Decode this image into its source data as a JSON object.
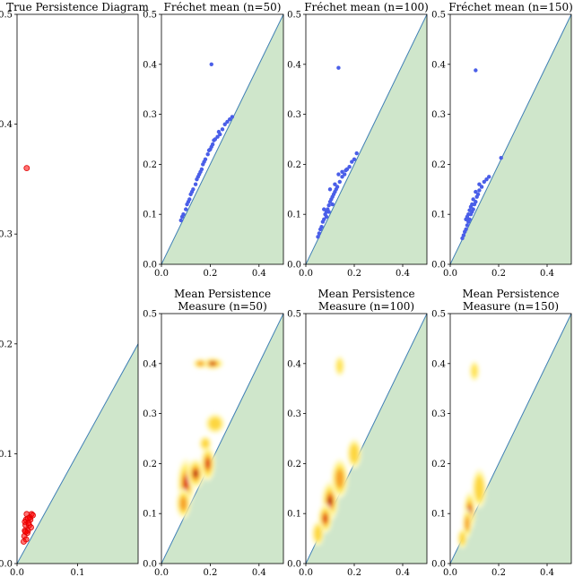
{
  "chart_data": [
    {
      "id": "true",
      "type": "scatter",
      "title": [
        "True Persistence Diagram"
      ],
      "xlim": [
        0,
        0.2
      ],
      "ylim": [
        0,
        0.5
      ],
      "xticks": [
        0.0,
        0.1
      ],
      "yticks": [
        0.0,
        0.1,
        0.2,
        0.3,
        0.4,
        0.5
      ],
      "point_color": "#ff0000",
      "points": [
        [
          0.016,
          0.36
        ],
        [
          0.012,
          0.025
        ],
        [
          0.013,
          0.03
        ],
        [
          0.014,
          0.035
        ],
        [
          0.015,
          0.04
        ],
        [
          0.016,
          0.045
        ],
        [
          0.018,
          0.03
        ],
        [
          0.02,
          0.035
        ],
        [
          0.022,
          0.04
        ],
        [
          0.024,
          0.045
        ],
        [
          0.013,
          0.038
        ],
        [
          0.017,
          0.028
        ],
        [
          0.021,
          0.042
        ],
        [
          0.015,
          0.022
        ],
        [
          0.019,
          0.037
        ],
        [
          0.023,
          0.033
        ],
        [
          0.026,
          0.044
        ],
        [
          0.011,
          0.02
        ],
        [
          0.014,
          0.029
        ],
        [
          0.018,
          0.041
        ]
      ]
    },
    {
      "id": "frechet50",
      "type": "scatter",
      "title": [
        "Fréchet mean (n=50)"
      ],
      "xlim": [
        0,
        0.5
      ],
      "ylim": [
        0,
        0.5
      ],
      "xticks": [
        0.0,
        0.2,
        0.4
      ],
      "yticks": [
        0.0,
        0.1,
        0.2,
        0.3,
        0.4,
        0.5
      ],
      "point_color": "#4a5ee8",
      "points": [
        [
          0.205,
          0.4
        ],
        [
          0.08,
          0.088
        ],
        [
          0.085,
          0.095
        ],
        [
          0.09,
          0.1
        ],
        [
          0.1,
          0.11
        ],
        [
          0.105,
          0.12
        ],
        [
          0.11,
          0.125
        ],
        [
          0.115,
          0.13
        ],
        [
          0.12,
          0.14
        ],
        [
          0.13,
          0.15
        ],
        [
          0.14,
          0.16
        ],
        [
          0.145,
          0.17
        ],
        [
          0.15,
          0.175
        ],
        [
          0.16,
          0.185
        ],
        [
          0.165,
          0.19
        ],
        [
          0.17,
          0.2
        ],
        [
          0.18,
          0.21
        ],
        [
          0.19,
          0.22
        ],
        [
          0.2,
          0.23
        ],
        [
          0.205,
          0.235
        ],
        [
          0.21,
          0.24
        ],
        [
          0.22,
          0.25
        ],
        [
          0.23,
          0.255
        ],
        [
          0.24,
          0.26
        ],
        [
          0.25,
          0.27
        ],
        [
          0.26,
          0.28
        ],
        [
          0.27,
          0.285
        ],
        [
          0.28,
          0.29
        ],
        [
          0.29,
          0.295
        ],
        [
          0.125,
          0.145
        ],
        [
          0.155,
          0.18
        ],
        [
          0.175,
          0.205
        ],
        [
          0.195,
          0.228
        ],
        [
          0.215,
          0.248
        ],
        [
          0.235,
          0.265
        ]
      ]
    },
    {
      "id": "frechet100",
      "type": "scatter",
      "title": [
        "Fréchet mean (n=100)"
      ],
      "xlim": [
        0,
        0.5
      ],
      "ylim": [
        0,
        0.5
      ],
      "xticks": [
        0.0,
        0.2,
        0.4
      ],
      "yticks": [
        0.0,
        0.1,
        0.2,
        0.3,
        0.4,
        0.5
      ],
      "point_color": "#4a5ee8",
      "points": [
        [
          0.135,
          0.393
        ],
        [
          0.05,
          0.055
        ],
        [
          0.055,
          0.062
        ],
        [
          0.06,
          0.07
        ],
        [
          0.065,
          0.075
        ],
        [
          0.07,
          0.085
        ],
        [
          0.075,
          0.09
        ],
        [
          0.08,
          0.1
        ],
        [
          0.085,
          0.105
        ],
        [
          0.09,
          0.11
        ],
        [
          0.095,
          0.118
        ],
        [
          0.1,
          0.125
        ],
        [
          0.105,
          0.13
        ],
        [
          0.11,
          0.135
        ],
        [
          0.115,
          0.14
        ],
        [
          0.12,
          0.145
        ],
        [
          0.125,
          0.15
        ],
        [
          0.13,
          0.155
        ],
        [
          0.14,
          0.165
        ],
        [
          0.15,
          0.175
        ],
        [
          0.16,
          0.18
        ],
        [
          0.17,
          0.19
        ],
        [
          0.18,
          0.195
        ],
        [
          0.19,
          0.205
        ],
        [
          0.2,
          0.21
        ],
        [
          0.21,
          0.222
        ],
        [
          0.075,
          0.11
        ],
        [
          0.1,
          0.15
        ],
        [
          0.12,
          0.16
        ],
        [
          0.135,
          0.18
        ],
        [
          0.15,
          0.185
        ],
        [
          0.165,
          0.188
        ],
        [
          0.085,
          0.095
        ],
        [
          0.095,
          0.105
        ],
        [
          0.11,
          0.12
        ]
      ]
    },
    {
      "id": "frechet150",
      "type": "scatter",
      "title": [
        "Fréchet mean (n=150)"
      ],
      "xlim": [
        0,
        0.5
      ],
      "ylim": [
        0,
        0.5
      ],
      "xticks": [
        0.0,
        0.2,
        0.4
      ],
      "yticks": [
        0.0,
        0.1,
        0.2,
        0.3,
        0.4,
        0.5
      ],
      "point_color": "#4a5ee8",
      "points": [
        [
          0.105,
          0.388
        ],
        [
          0.05,
          0.052
        ],
        [
          0.055,
          0.058
        ],
        [
          0.06,
          0.065
        ],
        [
          0.065,
          0.07
        ],
        [
          0.07,
          0.078
        ],
        [
          0.075,
          0.085
        ],
        [
          0.08,
          0.09
        ],
        [
          0.085,
          0.1
        ],
        [
          0.09,
          0.105
        ],
        [
          0.095,
          0.11
        ],
        [
          0.1,
          0.12
        ],
        [
          0.105,
          0.125
        ],
        [
          0.11,
          0.135
        ],
        [
          0.115,
          0.14
        ],
        [
          0.12,
          0.148
        ],
        [
          0.13,
          0.155
        ],
        [
          0.14,
          0.165
        ],
        [
          0.15,
          0.17
        ],
        [
          0.16,
          0.175
        ],
        [
          0.21,
          0.213
        ],
        [
          0.065,
          0.09
        ],
        [
          0.075,
          0.1
        ],
        [
          0.085,
          0.115
        ],
        [
          0.095,
          0.13
        ],
        [
          0.105,
          0.145
        ],
        [
          0.12,
          0.16
        ],
        [
          0.07,
          0.095
        ],
        [
          0.08,
          0.108
        ],
        [
          0.09,
          0.12
        ]
      ]
    },
    {
      "id": "mpm50",
      "type": "heatmap",
      "title": [
        "Mean Persistence",
        "Measure (n=50)"
      ],
      "xlim": [
        0,
        0.5
      ],
      "ylim": [
        0,
        0.5
      ],
      "xticks": [
        0.0,
        0.2,
        0.4
      ],
      "yticks": [
        0.0,
        0.1,
        0.2,
        0.3,
        0.4,
        0.5
      ],
      "blobs": [
        [
          0.21,
          0.4,
          0.045,
          0.012,
          1.0
        ],
        [
          0.16,
          0.4,
          0.03,
          0.01,
          0.55
        ],
        [
          0.1,
          0.16,
          0.035,
          0.05,
          0.9
        ],
        [
          0.14,
          0.18,
          0.035,
          0.03,
          0.95
        ],
        [
          0.19,
          0.2,
          0.03,
          0.035,
          0.85
        ],
        [
          0.09,
          0.12,
          0.03,
          0.03,
          0.7
        ],
        [
          0.22,
          0.28,
          0.04,
          0.02,
          0.45
        ],
        [
          0.18,
          0.24,
          0.025,
          0.015,
          0.35
        ]
      ]
    },
    {
      "id": "mpm100",
      "type": "heatmap",
      "title": [
        "Mean Persistence",
        "Measure (n=100)"
      ],
      "xlim": [
        0,
        0.5
      ],
      "ylim": [
        0,
        0.5
      ],
      "xticks": [
        0.0,
        0.2,
        0.4
      ],
      "yticks": [
        0.0,
        0.1,
        0.2,
        0.3,
        0.4,
        0.5
      ],
      "blobs": [
        [
          0.14,
          0.395,
          0.02,
          0.02,
          0.3
        ],
        [
          0.1,
          0.125,
          0.035,
          0.04,
          1.0
        ],
        [
          0.08,
          0.09,
          0.03,
          0.03,
          0.75
        ],
        [
          0.14,
          0.17,
          0.035,
          0.04,
          0.6
        ],
        [
          0.2,
          0.22,
          0.03,
          0.03,
          0.35
        ],
        [
          0.05,
          0.06,
          0.025,
          0.025,
          0.45
        ]
      ]
    },
    {
      "id": "mpm150",
      "type": "heatmap",
      "title": [
        "Mean Persistence",
        "Measure (n=150)"
      ],
      "xlim": [
        0,
        0.5
      ],
      "ylim": [
        0,
        0.5
      ],
      "xticks": [
        0.0,
        0.2,
        0.4
      ],
      "yticks": [
        0.0,
        0.1,
        0.2,
        0.3,
        0.4,
        0.5
      ],
      "blobs": [
        [
          0.1,
          0.385,
          0.02,
          0.02,
          0.25
        ],
        [
          0.08,
          0.105,
          0.025,
          0.04,
          1.0
        ],
        [
          0.07,
          0.08,
          0.02,
          0.03,
          0.7
        ],
        [
          0.12,
          0.15,
          0.03,
          0.04,
          0.4
        ],
        [
          0.05,
          0.05,
          0.02,
          0.02,
          0.35
        ]
      ]
    }
  ]
}
